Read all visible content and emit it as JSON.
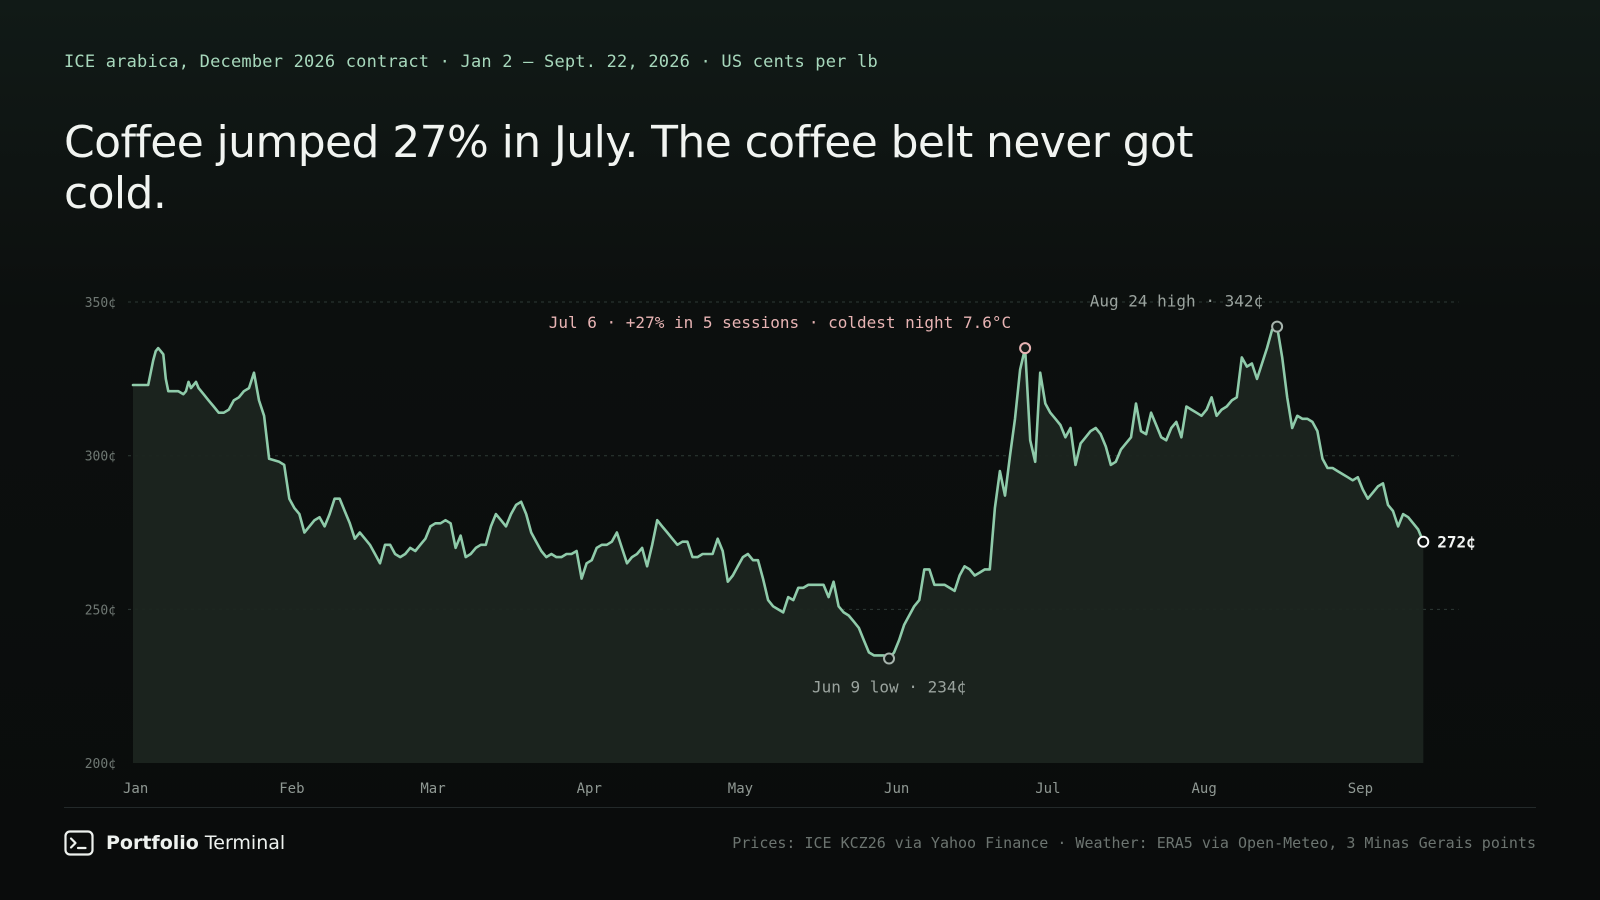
{
  "header": {
    "subtitle": "ICE arabica, December 2026 contract · Jan 2 – Sept. 22, 2026 · US cents per lb",
    "title": "Coffee jumped 27% in July. The coffee belt never got cold."
  },
  "footer": {
    "brand_bold": "Portfolio",
    "brand_rest": " Terminal",
    "brand_icon": "terminal-prompt-icon",
    "credit": "Prices: ICE KCZ26 via Yahoo Finance · Weather: ERA5 via Open-Meteo, 3 Minas Gerais points"
  },
  "colors": {
    "background": "#0b0e0d",
    "line": "#8fcbaa",
    "area_fill": "#1c2520",
    "grid": "#2e3a35",
    "peak_marker": "#e8b4b4",
    "annotation_text": "#9aa39e",
    "accent_text": "#a7d8bc"
  },
  "chart_data": {
    "type": "area",
    "ylim": [
      200,
      350
    ],
    "yticks": [
      {
        "value": 350,
        "label": "350¢"
      },
      {
        "value": 300,
        "label": "300¢"
      },
      {
        "value": 250,
        "label": "250¢"
      },
      {
        "value": 200,
        "label": "200¢"
      }
    ],
    "x_months": [
      {
        "day": 0,
        "label": "Jan"
      },
      {
        "day": 31,
        "label": "Feb"
      },
      {
        "day": 59,
        "label": "Mar"
      },
      {
        "day": 90,
        "label": "Apr"
      },
      {
        "day": 120,
        "label": "May"
      },
      {
        "day": 151,
        "label": "Jun"
      },
      {
        "day": 181,
        "label": "Jul"
      },
      {
        "day": 212,
        "label": "Aug"
      },
      {
        "day": 243,
        "label": "Sep"
      }
    ],
    "x_end_day": 264,
    "series": [
      {
        "points": [
          [
            1,
            323
          ],
          [
            4,
            323
          ],
          [
            5,
            331
          ],
          [
            5.5,
            334
          ],
          [
            6,
            335
          ],
          [
            6.5,
            334
          ],
          [
            7,
            333
          ],
          [
            7.5,
            325
          ],
          [
            8,
            321
          ],
          [
            10,
            321
          ],
          [
            11,
            320
          ],
          [
            11.5,
            321
          ],
          [
            12,
            324
          ],
          [
            12.5,
            322
          ],
          [
            13,
            323
          ],
          [
            13.5,
            324
          ],
          [
            14,
            322
          ],
          [
            15,
            320
          ],
          [
            16,
            318
          ],
          [
            17,
            316
          ],
          [
            18,
            314
          ],
          [
            19,
            314
          ],
          [
            20,
            315
          ],
          [
            21,
            318
          ],
          [
            22,
            319
          ],
          [
            23,
            321
          ],
          [
            24,
            322
          ],
          [
            25,
            327
          ],
          [
            26,
            318
          ],
          [
            27,
            313
          ],
          [
            28,
            299
          ],
          [
            30,
            298
          ],
          [
            31,
            297
          ],
          [
            32,
            286
          ],
          [
            33,
            283
          ],
          [
            34,
            281
          ],
          [
            35,
            275
          ],
          [
            36,
            277
          ],
          [
            37,
            279
          ],
          [
            38,
            280
          ],
          [
            39,
            277
          ],
          [
            40,
            281
          ],
          [
            41,
            286
          ],
          [
            42,
            286
          ],
          [
            43,
            282
          ],
          [
            44,
            278
          ],
          [
            45,
            273
          ],
          [
            46,
            275
          ],
          [
            47,
            273
          ],
          [
            48,
            271
          ],
          [
            49,
            268
          ],
          [
            50,
            265
          ],
          [
            51,
            271
          ],
          [
            52,
            271
          ],
          [
            53,
            268
          ],
          [
            54,
            267
          ],
          [
            55,
            268
          ],
          [
            56,
            270
          ],
          [
            57,
            269
          ],
          [
            58,
            271
          ],
          [
            59,
            273
          ],
          [
            60,
            277
          ],
          [
            61,
            278
          ],
          [
            62,
            278
          ],
          [
            63,
            279
          ],
          [
            64,
            278
          ],
          [
            65,
            270
          ],
          [
            66,
            274
          ],
          [
            67,
            267
          ],
          [
            68,
            268
          ],
          [
            69,
            270
          ],
          [
            70,
            271
          ],
          [
            71,
            271
          ],
          [
            72,
            277
          ],
          [
            73,
            281
          ],
          [
            74,
            279
          ],
          [
            75,
            277
          ],
          [
            76,
            281
          ],
          [
            77,
            284
          ],
          [
            78,
            285
          ],
          [
            79,
            281
          ],
          [
            80,
            275
          ],
          [
            81,
            272
          ],
          [
            82,
            269
          ],
          [
            83,
            267
          ],
          [
            84,
            268
          ],
          [
            85,
            267
          ],
          [
            86,
            267
          ],
          [
            87,
            268
          ],
          [
            88,
            268
          ],
          [
            89,
            269
          ],
          [
            90,
            260
          ],
          [
            91,
            265
          ],
          [
            92,
            266
          ],
          [
            93,
            270
          ],
          [
            94,
            271
          ],
          [
            95,
            271
          ],
          [
            96,
            272
          ],
          [
            97,
            275
          ],
          [
            98,
            270
          ],
          [
            99,
            265
          ],
          [
            100,
            267
          ],
          [
            101,
            268
          ],
          [
            102,
            270
          ],
          [
            103,
            264
          ],
          [
            104,
            271
          ],
          [
            105,
            279
          ],
          [
            106,
            277
          ],
          [
            107,
            275
          ],
          [
            108,
            273
          ],
          [
            109,
            271
          ],
          [
            110,
            272
          ],
          [
            111,
            272
          ],
          [
            112,
            267
          ],
          [
            113,
            267
          ],
          [
            114,
            268
          ],
          [
            115,
            268
          ],
          [
            116,
            268
          ],
          [
            117,
            273
          ],
          [
            118,
            269
          ],
          [
            119,
            259
          ],
          [
            120,
            261
          ],
          [
            121,
            264
          ],
          [
            122,
            267
          ],
          [
            123,
            268
          ],
          [
            124,
            266
          ],
          [
            125,
            266
          ],
          [
            126,
            260
          ],
          [
            127,
            253
          ],
          [
            128,
            251
          ],
          [
            129,
            250
          ],
          [
            130,
            249
          ],
          [
            131,
            254
          ],
          [
            132,
            253
          ],
          [
            133,
            257
          ],
          [
            134,
            257
          ],
          [
            135,
            258
          ],
          [
            136,
            258
          ],
          [
            137,
            258
          ],
          [
            138,
            258
          ],
          [
            139,
            254
          ],
          [
            140,
            259
          ],
          [
            141,
            251
          ],
          [
            142,
            249
          ],
          [
            143,
            248
          ],
          [
            144,
            246
          ],
          [
            145,
            244
          ],
          [
            146,
            240
          ],
          [
            147,
            236
          ],
          [
            148,
            235
          ],
          [
            149,
            235
          ],
          [
            150,
            235
          ],
          [
            151,
            234
          ],
          [
            152,
            236
          ],
          [
            153,
            240
          ],
          [
            154,
            245
          ],
          [
            155,
            248
          ],
          [
            156,
            251
          ],
          [
            157,
            253
          ],
          [
            158,
            263
          ],
          [
            159,
            263
          ],
          [
            160,
            258
          ],
          [
            162,
            258
          ],
          [
            163,
            257
          ],
          [
            164,
            256
          ],
          [
            165,
            261
          ],
          [
            166,
            264
          ],
          [
            167,
            263
          ],
          [
            168,
            261
          ],
          [
            169,
            262
          ],
          [
            170,
            263
          ],
          [
            171,
            263
          ],
          [
            172,
            283
          ],
          [
            173,
            295
          ],
          [
            174,
            287
          ],
          [
            175,
            300
          ],
          [
            176,
            312
          ],
          [
            177,
            328
          ],
          [
            178,
            335
          ],
          [
            179,
            305
          ],
          [
            180,
            298
          ],
          [
            181,
            327
          ],
          [
            182,
            317
          ],
          [
            183,
            314
          ],
          [
            184,
            312
          ],
          [
            185,
            310
          ],
          [
            186,
            306
          ],
          [
            187,
            309
          ],
          [
            188,
            297
          ],
          [
            189,
            304
          ],
          [
            190,
            306
          ],
          [
            191,
            308
          ],
          [
            192,
            309
          ],
          [
            193,
            307
          ],
          [
            194,
            303
          ],
          [
            195,
            297
          ],
          [
            196,
            298
          ],
          [
            197,
            302
          ],
          [
            198,
            304
          ],
          [
            199,
            306
          ],
          [
            200,
            317
          ],
          [
            201,
            308
          ],
          [
            202,
            307
          ],
          [
            203,
            314
          ],
          [
            204,
            310
          ],
          [
            205,
            306
          ],
          [
            206,
            305
          ],
          [
            207,
            309
          ],
          [
            208,
            311
          ],
          [
            209,
            306
          ],
          [
            210,
            316
          ],
          [
            211,
            315
          ],
          [
            212,
            314
          ],
          [
            213,
            313
          ],
          [
            214,
            315
          ],
          [
            215,
            319
          ],
          [
            216,
            313
          ],
          [
            217,
            315
          ],
          [
            218,
            316
          ],
          [
            219,
            318
          ],
          [
            220,
            319
          ],
          [
            221,
            332
          ],
          [
            222,
            329
          ],
          [
            223,
            330
          ],
          [
            224,
            325
          ],
          [
            225,
            330
          ],
          [
            226,
            335
          ],
          [
            227,
            341
          ],
          [
            228,
            342
          ],
          [
            229,
            332
          ],
          [
            230,
            319
          ],
          [
            231,
            309
          ],
          [
            232,
            313
          ],
          [
            233,
            312
          ],
          [
            234,
            312
          ],
          [
            235,
            311
          ],
          [
            236,
            308
          ],
          [
            237,
            299
          ],
          [
            238,
            296
          ],
          [
            239,
            296
          ],
          [
            240,
            295
          ],
          [
            241,
            294
          ],
          [
            242,
            293
          ],
          [
            243,
            292
          ],
          [
            244,
            293
          ],
          [
            245,
            289
          ],
          [
            246,
            286
          ],
          [
            247,
            288
          ],
          [
            248,
            290
          ],
          [
            249,
            291
          ],
          [
            250,
            284
          ],
          [
            251,
            282
          ],
          [
            252,
            277
          ],
          [
            253,
            281
          ],
          [
            254,
            280
          ],
          [
            255,
            278
          ],
          [
            256,
            276
          ],
          [
            257,
            272
          ]
        ]
      }
    ],
    "annotations": {
      "low": {
        "day": 151,
        "value": 234,
        "label": "Jun 9 low · 234¢"
      },
      "july_peak": {
        "day": 178,
        "value": 335,
        "label": "Jul 6 · +27% in 5 sessions · coldest night 7.6°C"
      },
      "high": {
        "day": 228,
        "value": 342,
        "label": "Aug 24 high · 342¢"
      },
      "last": {
        "day": 257,
        "value": 272,
        "label": "272¢"
      }
    }
  }
}
